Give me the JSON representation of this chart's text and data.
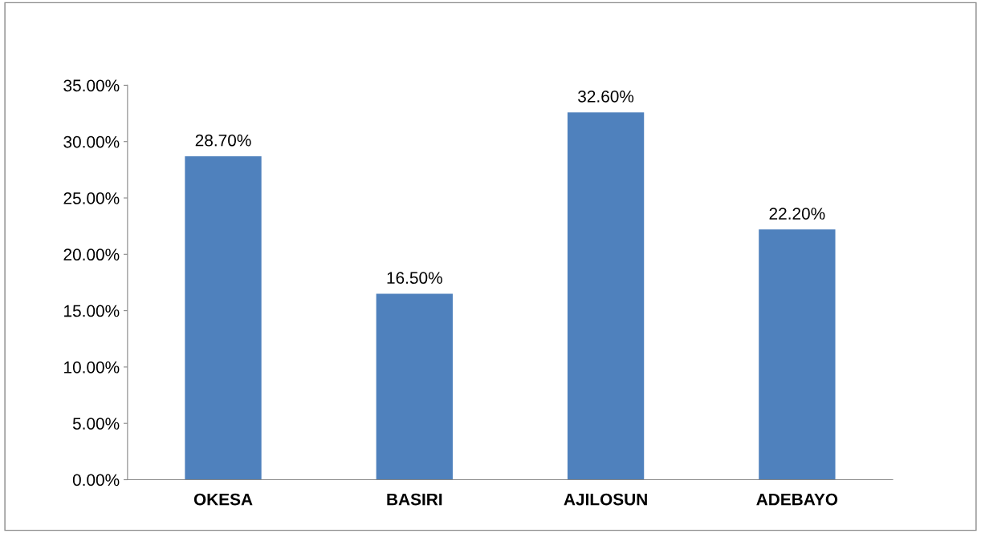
{
  "chart_data": {
    "type": "bar",
    "categories": [
      "OKESA",
      "BASIRI",
      "AJILOSUN",
      "ADEBAYO"
    ],
    "values": [
      28.7,
      16.5,
      32.6,
      22.2
    ],
    "value_labels": [
      "28.70%",
      "16.50%",
      "32.60%",
      "22.20%"
    ],
    "color": "#4f81bd",
    "ylim": [
      0,
      35
    ],
    "yticks": [
      {
        "value": 0,
        "label": "0.00%"
      },
      {
        "value": 5,
        "label": "5.00%"
      },
      {
        "value": 10,
        "label": "10.00%"
      },
      {
        "value": 15,
        "label": "15.00%"
      },
      {
        "value": 20,
        "label": "20.00%"
      },
      {
        "value": 25,
        "label": "25.00%"
      },
      {
        "value": 30,
        "label": "30.00%"
      },
      {
        "value": 35,
        "label": "35.00%"
      }
    ],
    "grid": false
  }
}
